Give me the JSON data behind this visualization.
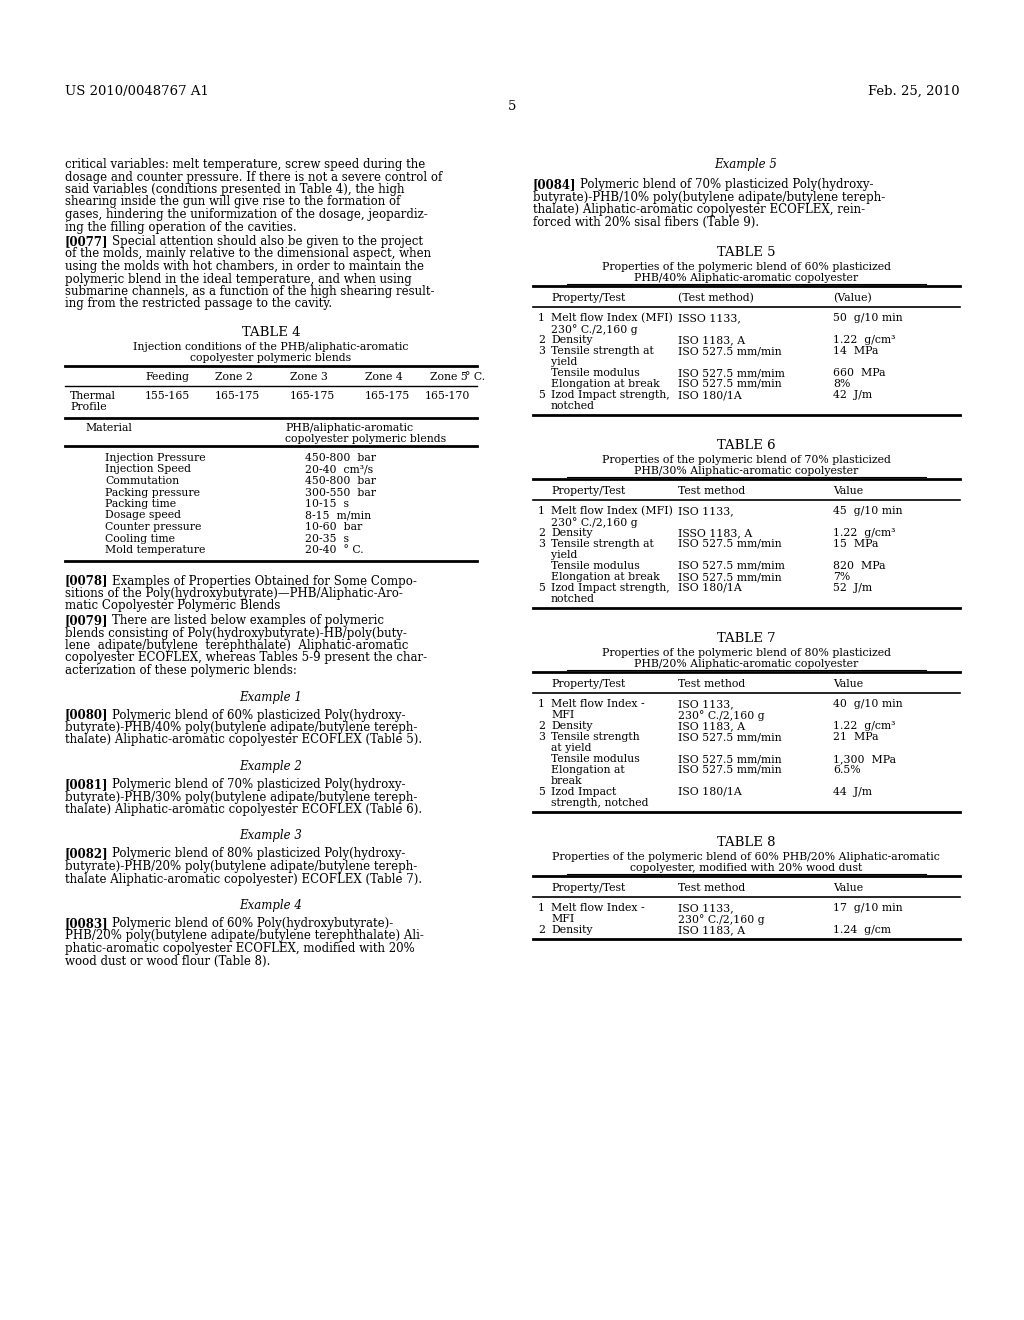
{
  "page_number": "5",
  "header_left": "US 2010/0048767 A1",
  "header_right": "Feb. 25, 2010",
  "background_color": "#ffffff",
  "text_color": "#000000"
}
